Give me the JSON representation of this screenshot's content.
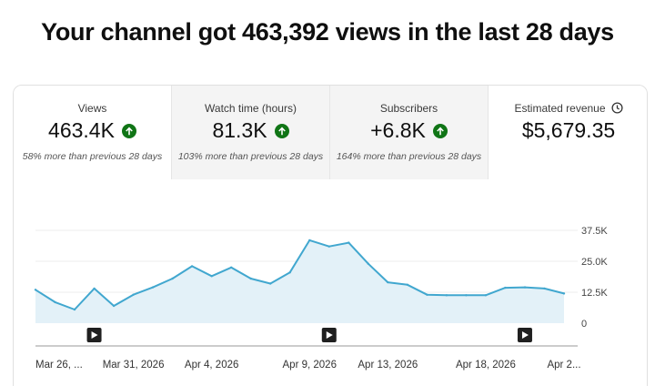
{
  "headline": "Your channel got 463,392 views in the last 28 days",
  "tabs": [
    {
      "title": "Views",
      "value": "463.4K",
      "change": "58% more than previous 28 days",
      "trend": "up"
    },
    {
      "title": "Watch time (hours)",
      "value": "81.3K",
      "change": "103% more than previous 28 days",
      "trend": "up"
    },
    {
      "title": "Subscribers",
      "value": "+6.8K",
      "change": "164% more than previous 28 days",
      "trend": "up"
    },
    {
      "title": "Estimated revenue",
      "value": "$5,679.35",
      "change": "",
      "trend": "",
      "icon": "clock-icon"
    }
  ],
  "colors": {
    "line": "#41a7cf",
    "fill": "#e3f1f8",
    "up": "#107516"
  },
  "chart_data": {
    "type": "area",
    "series": [
      {
        "values": [
          13500,
          8500,
          5500,
          14000,
          7000,
          11500,
          14500,
          18000,
          23000,
          19000,
          22500,
          18000,
          16000,
          20500,
          33500,
          31000,
          32500,
          24000,
          16500,
          15500,
          11500,
          11300,
          11300,
          11300,
          14300,
          14500,
          14000,
          12000
        ]
      }
    ],
    "y_ticks": [
      "37.5K",
      "25.0K",
      "12.5K",
      "0"
    ],
    "y_tick_values": [
      37500,
      25000,
      12500,
      0
    ],
    "ylim": [
      0,
      37500
    ],
    "x_labels": [
      {
        "index": 0,
        "label": "Mar 26, ..."
      },
      {
        "index": 5,
        "label": "Mar 31, 2026"
      },
      {
        "index": 9,
        "label": "Apr 4, 2026"
      },
      {
        "index": 14,
        "label": "Apr 9, 2026"
      },
      {
        "index": 18,
        "label": "Apr 13, 2026"
      },
      {
        "index": 23,
        "label": "Apr 18, 2026"
      },
      {
        "index": 27,
        "label": "Apr 2..."
      }
    ],
    "video_markers": [
      3,
      15,
      25
    ],
    "grid": true
  }
}
